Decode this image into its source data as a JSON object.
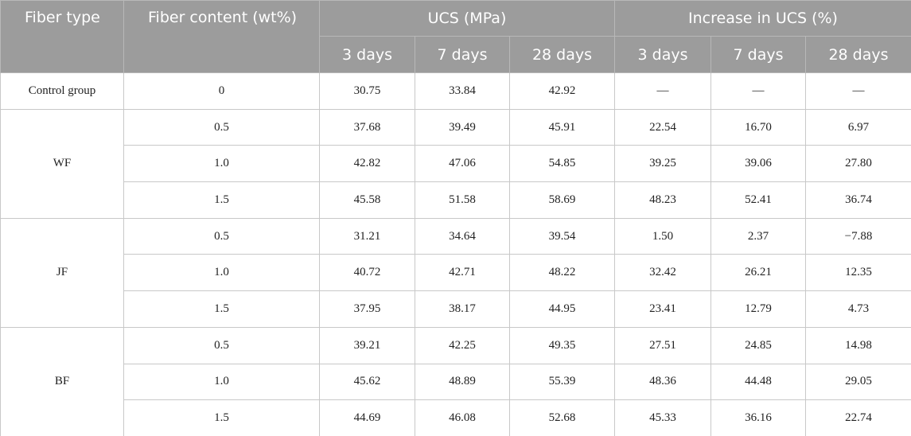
{
  "header": {
    "fiber_type": "Fiber type",
    "fiber_content": "Fiber content (wt%)",
    "ucs": "UCS (MPa)",
    "increase": "Increase in UCS (%)",
    "ucs_days": [
      "3 days",
      "7 days",
      "28 days"
    ],
    "increase_days": [
      "3 days",
      "7 days",
      "28 days"
    ]
  },
  "groups": [
    {
      "type": "Control group",
      "rows": [
        [
          "0",
          "30.75",
          "33.84",
          "42.92",
          "—",
          "—",
          "—"
        ]
      ]
    },
    {
      "type": "WF",
      "rows": [
        [
          "0.5",
          "37.68",
          "39.49",
          "45.91",
          "22.54",
          "16.70",
          "6.97"
        ],
        [
          "1.0",
          "42.82",
          "47.06",
          "54.85",
          "39.25",
          "39.06",
          "27.80"
        ],
        [
          "1.5",
          "45.58",
          "51.58",
          "58.69",
          "48.23",
          "52.41",
          "36.74"
        ]
      ]
    },
    {
      "type": "JF",
      "rows": [
        [
          "0.5",
          "31.21",
          "34.64",
          "39.54",
          "1.50",
          "2.37",
          "−7.88"
        ],
        [
          "1.0",
          "40.72",
          "42.71",
          "48.22",
          "32.42",
          "26.21",
          "12.35"
        ],
        [
          "1.5",
          "37.95",
          "38.17",
          "44.95",
          "23.41",
          "12.79",
          "4.73"
        ]
      ]
    },
    {
      "type": "BF",
      "rows": [
        [
          "0.5",
          "39.21",
          "42.25",
          "49.35",
          "27.51",
          "24.85",
          "14.98"
        ],
        [
          "1.0",
          "45.62",
          "48.89",
          "55.39",
          "48.36",
          "44.48",
          "29.05"
        ],
        [
          "1.5",
          "44.69",
          "46.08",
          "52.68",
          "45.33",
          "36.16",
          "22.74"
        ]
      ]
    }
  ]
}
